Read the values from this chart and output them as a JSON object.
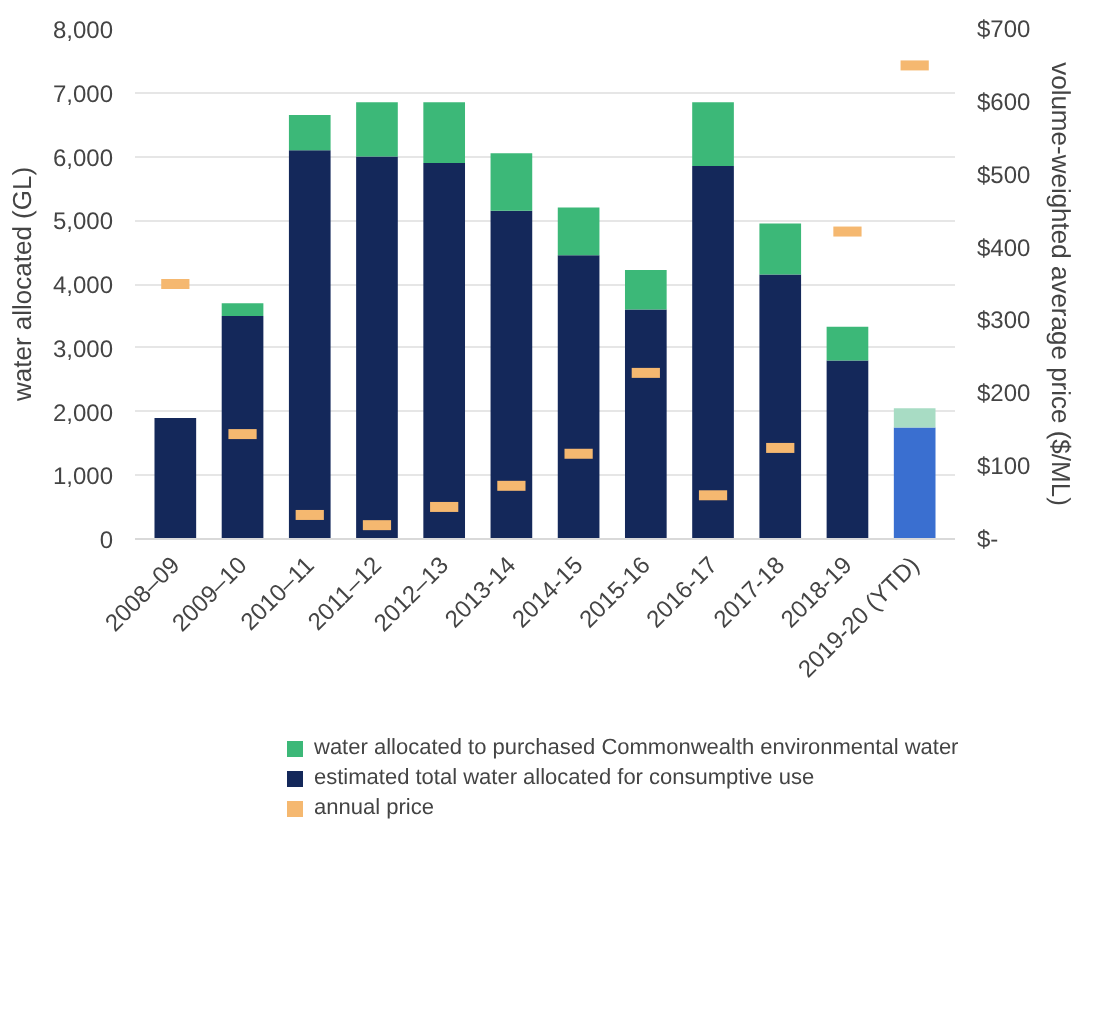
{
  "chart_data": {
    "type": "bar",
    "stacked": true,
    "categories": [
      "2008–09",
      "2009–10",
      "2010–11",
      "2011–12",
      "2012–13",
      "2013-14",
      "2014-15",
      "2015-16",
      "2016-17",
      "2017-18",
      "2018-19",
      "2019-20 (YTD)"
    ],
    "ylabel": "water allocated (GL)",
    "y2label": "volume-weighted average price ($/ML)",
    "ylim": [
      0,
      8000
    ],
    "yticks": [
      {
        "value": 0,
        "label": "0"
      },
      {
        "value": 1000,
        "label": "1,000"
      },
      {
        "value": 2000,
        "label": "2,000"
      },
      {
        "value": 3000,
        "label": "3,000"
      },
      {
        "value": 4000,
        "label": "4,000"
      },
      {
        "value": 5000,
        "label": "5,000"
      },
      {
        "value": 6000,
        "label": "6,000"
      },
      {
        "value": 7000,
        "label": "7,000"
      },
      {
        "value": 8000,
        "label": "8,000"
      }
    ],
    "y2lim": [
      0,
      700
    ],
    "y2ticks": [
      {
        "value": 0,
        "label": "$-"
      },
      {
        "value": 100,
        "label": "$100"
      },
      {
        "value": 200,
        "label": "$200"
      },
      {
        "value": 300,
        "label": "$300"
      },
      {
        "value": 400,
        "label": "$400"
      },
      {
        "value": 500,
        "label": "$500"
      },
      {
        "value": 600,
        "label": "$600"
      },
      {
        "value": 700,
        "label": "$700"
      }
    ],
    "grid": "y",
    "legend": "bottom",
    "series": [
      {
        "name": "estimated total water allocated for consumptive use",
        "color": "#14285a",
        "colors": [
          "#14285a",
          "#14285a",
          "#14285a",
          "#14285a",
          "#14285a",
          "#14285a",
          "#14285a",
          "#14285a",
          "#14285a",
          "#14285a",
          "#14285a",
          "#3a6fd0"
        ],
        "values": [
          1900,
          3500,
          6100,
          6000,
          5900,
          5150,
          4450,
          3600,
          5850,
          4150,
          2800,
          1750
        ]
      },
      {
        "name": "water allocated to purchased Commonwealth environmental water",
        "color": "#3cb878",
        "colors": [
          "#3cb878",
          "#3cb878",
          "#3cb878",
          "#3cb878",
          "#3cb878",
          "#3cb878",
          "#3cb878",
          "#3cb878",
          "#3cb878",
          "#3cb878",
          "#3cb878",
          "#a8dcc4"
        ],
        "values": [
          0,
          200,
          550,
          850,
          950,
          900,
          750,
          620,
          1000,
          800,
          530,
          300
        ]
      },
      {
        "name": "annual price",
        "type": "scatter",
        "axis": "y2",
        "color": "#f5b870",
        "values": [
          350,
          144,
          33,
          19,
          44,
          73,
          117,
          228,
          60,
          125,
          422,
          650
        ]
      }
    ]
  }
}
